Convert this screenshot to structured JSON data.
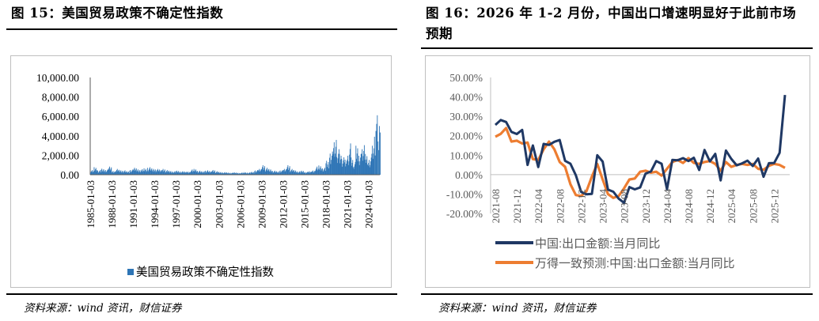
{
  "left": {
    "title": "图 15：美国贸易政策不确定性指数",
    "source": "资料来源：wind 资讯，财信证券",
    "chart_data": {
      "type": "bar",
      "x_tick_labels": [
        "1985-01-03",
        "1988-01-03",
        "1991-01-03",
        "1994-01-03",
        "1997-01-03",
        "2000-01-03",
        "2003-01-03",
        "2006-01-03",
        "2009-01-03",
        "2012-01-03",
        "2015-01-03",
        "2018-01-03",
        "2021-01-03",
        "2024-01-03"
      ],
      "x_start": 1985.0,
      "x_end": 2025.6,
      "y_tick_labels": [
        "0.00",
        "2,000.00",
        "4,000.00",
        "6,000.00",
        "8,000.00",
        "10,000.00"
      ],
      "ylim": [
        0,
        10000
      ],
      "legend": "top-less / bottom",
      "series": [
        {
          "name": "美国贸易政策不确定性指数",
          "color": "#2e75b6",
          "points": [
            [
              1985.0,
              400
            ],
            [
              1985.5,
              650
            ],
            [
              1986.0,
              380
            ],
            [
              1986.5,
              520
            ],
            [
              1987.0,
              450
            ],
            [
              1987.5,
              700
            ],
            [
              1988.0,
              350
            ],
            [
              1988.5,
              500
            ],
            [
              1989.0,
              420
            ],
            [
              1989.5,
              380
            ],
            [
              1990.0,
              300
            ],
            [
              1990.5,
              450
            ],
            [
              1991.0,
              600
            ],
            [
              1991.5,
              500
            ],
            [
              1992.0,
              480
            ],
            [
              1992.5,
              550
            ],
            [
              1993.0,
              650
            ],
            [
              1993.5,
              550
            ],
            [
              1994.0,
              500
            ],
            [
              1994.5,
              450
            ],
            [
              1995.0,
              550
            ],
            [
              1995.5,
              400
            ],
            [
              1996.0,
              350
            ],
            [
              1996.5,
              300
            ],
            [
              1997.0,
              350
            ],
            [
              1997.5,
              300
            ],
            [
              1998.0,
              280
            ],
            [
              1998.5,
              300
            ],
            [
              1999.0,
              450
            ],
            [
              1999.5,
              500
            ],
            [
              2000.0,
              350
            ],
            [
              2000.5,
              300
            ],
            [
              2001.0,
              380
            ],
            [
              2001.5,
              320
            ],
            [
              2002.0,
              450
            ],
            [
              2002.5,
              300
            ],
            [
              2003.0,
              250
            ],
            [
              2003.5,
              220
            ],
            [
              2004.0,
              200
            ],
            [
              2004.5,
              180
            ],
            [
              2005.0,
              200
            ],
            [
              2005.5,
              180
            ],
            [
              2006.0,
              190
            ],
            [
              2006.5,
              220
            ],
            [
              2007.0,
              200
            ],
            [
              2007.5,
              250
            ],
            [
              2008.0,
              400
            ],
            [
              2008.5,
              500
            ],
            [
              2009.0,
              900
            ],
            [
              2009.5,
              600
            ],
            [
              2010.0,
              500
            ],
            [
              2010.5,
              350
            ],
            [
              2011.0,
              300
            ],
            [
              2011.5,
              400
            ],
            [
              2012.0,
              500
            ],
            [
              2012.5,
              900
            ],
            [
              2013.0,
              500
            ],
            [
              2013.5,
              400
            ],
            [
              2014.0,
              300
            ],
            [
              2014.5,
              350
            ],
            [
              2015.0,
              250
            ],
            [
              2015.5,
              300
            ],
            [
              2016.0,
              400
            ],
            [
              2016.5,
              700
            ],
            [
              2017.0,
              800
            ],
            [
              2017.5,
              600
            ],
            [
              2018.0,
              1200
            ],
            [
              2018.5,
              2000
            ],
            [
              2019.0,
              2800
            ],
            [
              2019.3,
              3300
            ],
            [
              2019.6,
              2200
            ],
            [
              2019.9,
              1800
            ],
            [
              2020.2,
              1500
            ],
            [
              2020.6,
              1300
            ],
            [
              2021.0,
              1800
            ],
            [
              2021.3,
              2700
            ],
            [
              2021.6,
              1400
            ],
            [
              2021.9,
              1100
            ],
            [
              2022.2,
              2500
            ],
            [
              2022.6,
              1800
            ],
            [
              2023.0,
              2200
            ],
            [
              2023.3,
              2800
            ],
            [
              2023.6,
              1600
            ],
            [
              2023.9,
              1400
            ],
            [
              2024.2,
              1800
            ],
            [
              2024.5,
              2500
            ],
            [
              2024.8,
              3600
            ],
            [
              2025.0,
              4600
            ],
            [
              2025.1,
              6000
            ],
            [
              2025.2,
              8000
            ],
            [
              2025.3,
              5200
            ],
            [
              2025.4,
              4600
            ],
            [
              2025.5,
              4200
            ],
            [
              2025.6,
              4000
            ]
          ]
        }
      ]
    }
  },
  "right": {
    "title": "图 16：2026 年 1-2 月份，中国出口增速明显好于此前市场预期",
    "source": "资料来源：wind 资讯，财信证券",
    "chart_data": {
      "type": "line",
      "x_tick_labels": [
        "2021-08",
        "2021-12",
        "2022-04",
        "2022-08",
        "2022-12",
        "2023-04",
        "2023-08",
        "2023-12",
        "2024-04",
        "2024-08",
        "2024-12",
        "2025-04",
        "2025-08",
        "2025-12"
      ],
      "x_start": "2021-08",
      "y_tick_labels": [
        "-20.00%",
        "-10.00%",
        "0.00%",
        "10.00%",
        "20.00%",
        "30.00%",
        "40.00%",
        "50.00%"
      ],
      "ylim": [
        -20,
        50
      ],
      "series": [
        {
          "name": "中国:出口金额:当月同比",
          "color": "#1f3864",
          "values": [
            25.6,
            28.1,
            27.1,
            22.0,
            20.9,
            23.0,
            5.0,
            15.0,
            3.9,
            15.8,
            15.3,
            16.9,
            17.8,
            7.1,
            5.6,
            -0.3,
            -8.9,
            -10.1,
            -9.9,
            10.0,
            6.7,
            -7.7,
            -8.8,
            -12.4,
            -14.5,
            -6.4,
            -7.6,
            -6.6,
            0.5,
            1.6,
            7.0,
            5.6,
            -7.5,
            7.6,
            7.4,
            8.5,
            7.0,
            8.7,
            2.4,
            12.7,
            6.8,
            10.7,
            -3.0,
            12.4,
            8.1,
            4.8,
            5.8,
            7.2,
            4.4,
            8.3,
            -1.1,
            5.9,
            6.0,
            11.2,
            41.0
          ]
        },
        {
          "name": "万得一致预测:中国:出口金额:当月同比",
          "color": "#ed7d31",
          "values": [
            19.5,
            21.0,
            24.0,
            17.0,
            17.5,
            16.0,
            16.5,
            8.0,
            7.5,
            13.0,
            17.0,
            13.0,
            6.5,
            4.0,
            -5.0,
            -10.5,
            -11.0,
            -8.5,
            -1.0,
            5.5,
            -2.5,
            -10.0,
            -12.0,
            -11.0,
            -7.0,
            -2.5,
            -2.0,
            1.5,
            2.0,
            1.0,
            1.5,
            -0.5,
            3.0,
            6.5,
            7.5,
            6.0,
            8.5,
            6.0,
            5.5,
            6.5,
            7.0,
            5.5,
            2.0,
            6.5,
            4.0,
            5.0,
            5.5,
            5.0,
            5.5,
            3.0,
            2.5,
            4.5,
            5.5,
            5.0,
            3.5
          ]
        }
      ]
    }
  }
}
